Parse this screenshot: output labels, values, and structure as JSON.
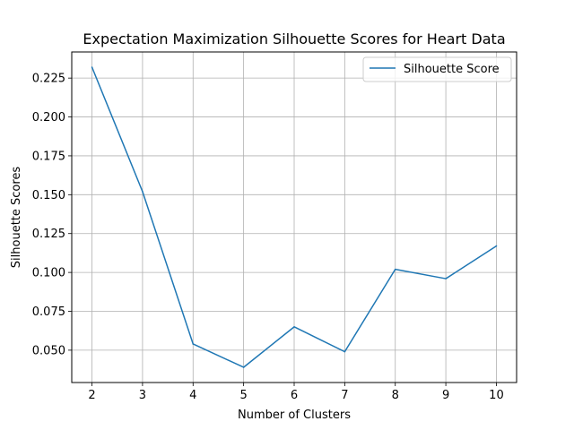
{
  "chart_data": {
    "type": "line",
    "title": "Expectation Maximization Silhouette Scores for Heart Data",
    "xlabel": "Number of Clusters",
    "ylabel": "Silhouette Scores",
    "x": [
      2,
      3,
      4,
      5,
      6,
      7,
      8,
      9,
      10
    ],
    "series": [
      {
        "name": "Silhouette Score",
        "color": "#1f77b4",
        "values": [
          0.232,
          0.152,
          0.054,
          0.039,
          0.065,
          0.049,
          0.102,
          0.096,
          0.117
        ]
      }
    ],
    "xlim": [
      1.6,
      10.4
    ],
    "ylim": [
      0.0292,
      0.2418
    ],
    "xticks": [
      "2",
      "3",
      "4",
      "5",
      "6",
      "7",
      "8",
      "9",
      "10"
    ],
    "xtick_values": [
      2,
      3,
      4,
      5,
      6,
      7,
      8,
      9,
      10
    ],
    "yticks": [
      "0.050",
      "0.075",
      "0.100",
      "0.125",
      "0.150",
      "0.175",
      "0.200",
      "0.225"
    ],
    "ytick_values": [
      0.05,
      0.075,
      0.1,
      0.125,
      0.15,
      0.175,
      0.2,
      0.225
    ],
    "grid": true,
    "legend_position": "upper right"
  }
}
